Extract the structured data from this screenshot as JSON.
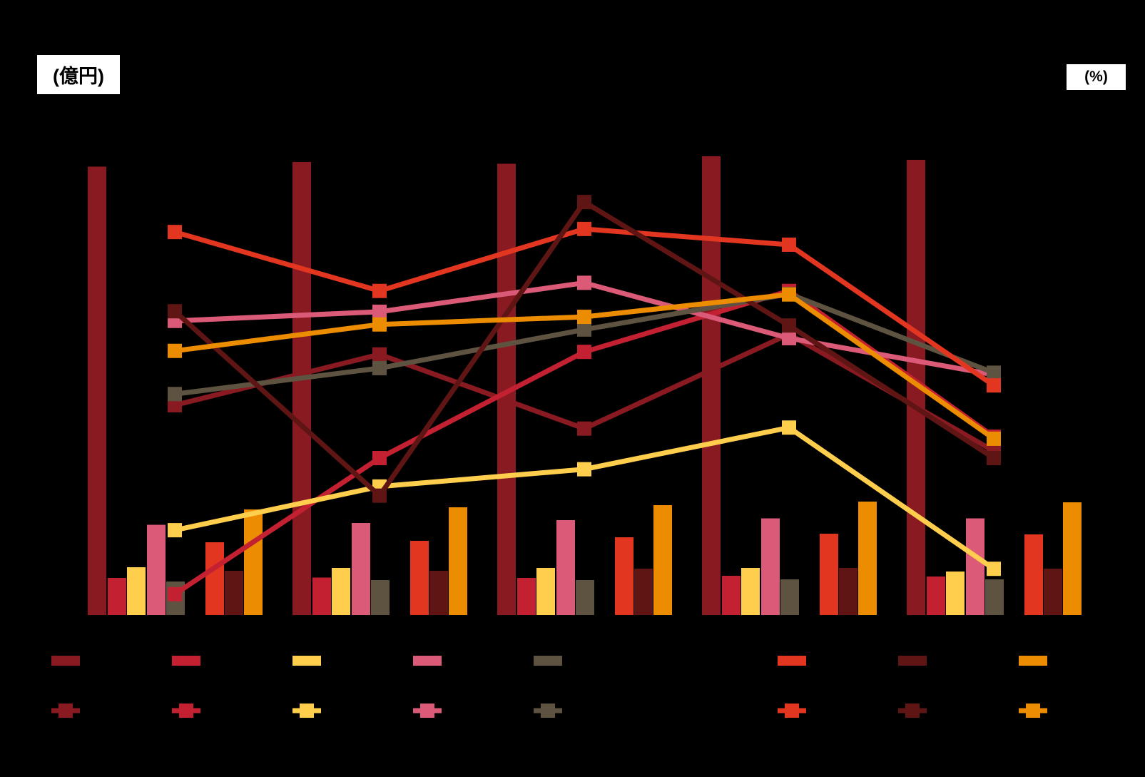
{
  "left_axis_unit": "(億円)",
  "right_axis_unit": "(%)",
  "notes": {
    "axis_tick_labels_visible": false,
    "legend_text_visible": false,
    "category_labels_visible": false
  },
  "chart_data": {
    "type": "combo-bar-line",
    "categories": [
      "",
      "",
      "",
      "",
      ""
    ],
    "left_axis": {
      "unit_label": "(億円)",
      "ylim": [
        0,
        1000
      ],
      "ticks_visible": false
    },
    "right_axis": {
      "unit_label": "(%)",
      "ylim": [
        0,
        10
      ],
      "ticks_visible": false
    },
    "grid": false,
    "legend_position": "bottom-two-rows",
    "bar_series": [
      {
        "name": "bar-dark-red",
        "color": "#8A1A22",
        "values": [
          883,
          892,
          888,
          903,
          896
        ]
      },
      {
        "name": "bar-crimson",
        "color": "#C32032",
        "values": [
          73,
          74,
          73,
          77,
          76
        ]
      },
      {
        "name": "bar-yellow",
        "color": "#FFCE4D",
        "values": [
          94,
          93,
          93,
          93,
          86
        ]
      },
      {
        "name": "bar-pink",
        "color": "#DA5A78",
        "values": [
          178,
          181,
          187,
          190,
          190
        ]
      },
      {
        "name": "bar-olive",
        "color": "#5E5340",
        "values": [
          66,
          69,
          69,
          70,
          70
        ]
      },
      {
        "name": "bar-red-orange",
        "color": "#E23620",
        "values": [
          143,
          146,
          153,
          160,
          159
        ]
      },
      {
        "name": "bar-dark-brown",
        "color": "#5F1513",
        "values": [
          87,
          87,
          91,
          93,
          91
        ]
      },
      {
        "name": "bar-orange",
        "color": "#EC8C00",
        "values": [
          208,
          212,
          216,
          223,
          222
        ]
      }
    ],
    "line_series": [
      {
        "name": "line-dark-red",
        "color": "#8A1A22",
        "values": [
          4.13,
          5.13,
          3.67,
          5.53,
          3.23
        ]
      },
      {
        "name": "line-crimson",
        "color": "#C32032",
        "values": [
          0.41,
          3.09,
          5.18,
          6.38,
          3.51
        ]
      },
      {
        "name": "line-yellow",
        "color": "#FFCE4D",
        "values": [
          1.67,
          2.53,
          2.87,
          3.69,
          0.91
        ]
      },
      {
        "name": "line-pink",
        "color": "#DA5A78",
        "values": [
          5.79,
          5.97,
          6.54,
          5.45,
          4.73
        ]
      },
      {
        "name": "line-olive",
        "color": "#5E5340",
        "values": [
          4.35,
          4.86,
          5.62,
          6.32,
          4.77
        ]
      },
      {
        "name": "line-red-orange",
        "color": "#E23620",
        "values": [
          7.54,
          6.38,
          7.6,
          7.29,
          4.52
        ]
      },
      {
        "name": "line-dark-brown",
        "color": "#5F1513",
        "values": [
          5.98,
          2.35,
          8.13,
          5.7,
          3.09
        ]
      },
      {
        "name": "line-orange",
        "color": "#EC8C00",
        "values": [
          5.2,
          5.72,
          5.87,
          6.31,
          3.47
        ]
      }
    ],
    "legend": {
      "row1_swatch_colors": [
        "#8A1A22",
        "#C32032",
        "#FFCE4D",
        "#DA5A78",
        "#5E5340",
        "#E23620",
        "#5F1513",
        "#EC8C00"
      ],
      "row2_marker_colors": [
        "#8A1A22",
        "#C32032",
        "#FFCE4D",
        "#DA5A78",
        "#5E5340",
        "#E23620",
        "#5F1513",
        "#EC8C00"
      ]
    }
  }
}
